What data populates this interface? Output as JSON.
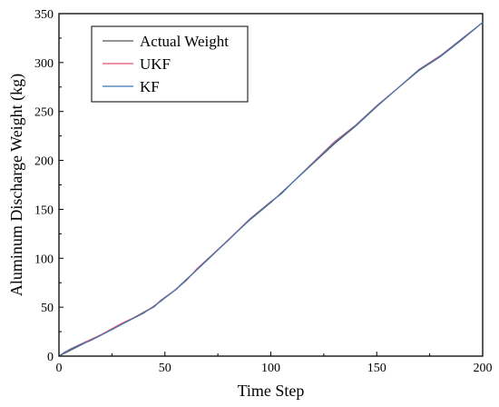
{
  "chart_data": {
    "type": "line",
    "title": "",
    "xlabel": "Time Step",
    "ylabel": "Aluminum Discharge Weight (kg)",
    "xlim": [
      0,
      200
    ],
    "ylim": [
      0,
      350
    ],
    "xticks": [
      0,
      50,
      100,
      150,
      200
    ],
    "yticks": [
      0,
      50,
      100,
      150,
      200,
      250,
      300,
      350
    ],
    "grid": false,
    "legend_position": "top-left",
    "series": [
      {
        "name": "Actual Weight",
        "color": "#555555",
        "x": [
          0,
          5,
          10,
          20,
          30,
          40,
          48,
          55,
          60,
          70,
          80,
          90,
          100,
          110,
          120,
          130,
          140,
          150,
          160,
          170,
          180,
          190,
          200
        ],
        "y": [
          0,
          5.5,
          11,
          22,
          33,
          44,
          56,
          68,
          78,
          98,
          119,
          139,
          157,
          177,
          197,
          217,
          235,
          255,
          274,
          292,
          306,
          323,
          341
        ]
      },
      {
        "name": "UKF",
        "color": "#e0506a",
        "x": [
          0,
          3,
          5,
          10,
          15,
          20,
          25,
          30,
          35,
          40,
          45,
          48,
          55,
          60,
          65,
          70,
          80,
          90,
          100,
          105,
          110,
          120,
          130,
          140,
          150,
          160,
          170,
          180,
          190,
          200
        ],
        "y": [
          0,
          4,
          7,
          12,
          17,
          22,
          28,
          34,
          39,
          45,
          51,
          57,
          68,
          77,
          89,
          99,
          119,
          140,
          158,
          166,
          177,
          198,
          219,
          236,
          256,
          274,
          293,
          307,
          324,
          341
        ]
      },
      {
        "name": "KF",
        "color": "#3c78b4",
        "x": [
          0,
          3,
          5,
          10,
          15,
          20,
          25,
          30,
          35,
          40,
          45,
          48,
          55,
          60,
          65,
          70,
          80,
          90,
          100,
          105,
          110,
          120,
          130,
          140,
          150,
          160,
          170,
          180,
          190,
          200
        ],
        "y": [
          0,
          4.5,
          6.5,
          11.5,
          16,
          21.5,
          27,
          33,
          38.5,
          44.5,
          50.5,
          56.5,
          67.5,
          77.5,
          88,
          98.5,
          118.5,
          139.5,
          157.5,
          166,
          177,
          197.5,
          218,
          235.5,
          255.5,
          274,
          292.5,
          306.5,
          323.5,
          341
        ]
      }
    ]
  }
}
